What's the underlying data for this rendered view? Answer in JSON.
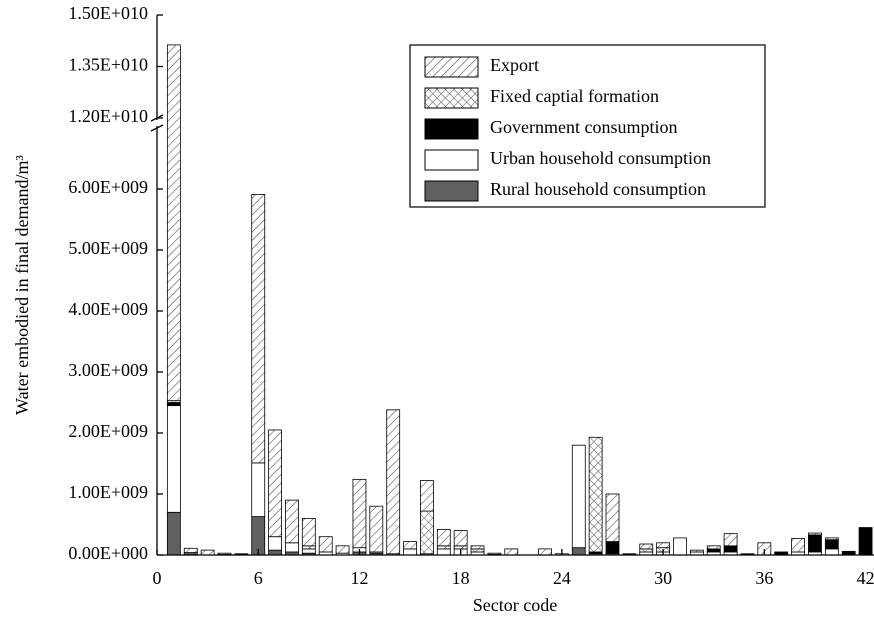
{
  "chart_data": {
    "type": "stacked_bar",
    "x_label": "Sector code",
    "y_label": "Water embodied in final demand/m³",
    "x": [
      1,
      2,
      3,
      4,
      5,
      6,
      7,
      8,
      9,
      10,
      11,
      12,
      13,
      14,
      15,
      16,
      17,
      18,
      19,
      20,
      21,
      22,
      23,
      24,
      25,
      26,
      27,
      28,
      29,
      30,
      31,
      32,
      33,
      34,
      35,
      36,
      37,
      38,
      39,
      40,
      41,
      42
    ],
    "xlim": [
      0,
      42.5
    ],
    "xticks": [
      0,
      6,
      12,
      18,
      24,
      30,
      36,
      42
    ],
    "ylim": [
      0,
      15000000000
    ],
    "y_break": [
      7000000000,
      12000000000
    ],
    "yticks": [
      {
        "value": 0,
        "label": "0.00E+000"
      },
      {
        "value": 1000000000,
        "label": "1.00E+009"
      },
      {
        "value": 2000000000,
        "label": "2.00E+009"
      },
      {
        "value": 3000000000,
        "label": "3.00E+009"
      },
      {
        "value": 4000000000,
        "label": "4.00E+009"
      },
      {
        "value": 5000000000,
        "label": "5.00E+009"
      },
      {
        "value": 6000000000,
        "label": "6.00E+009"
      },
      {
        "value": 12000000000,
        "label": "1.20E+010"
      },
      {
        "value": 13500000000,
        "label": "1.35E+010"
      },
      {
        "value": 15000000000,
        "label": "1.50E+010"
      }
    ],
    "legend": "upper right",
    "series": [
      {
        "name": "Export",
        "color": "#555555",
        "pattern": "hatch",
        "values": [
          11600000000.0,
          70000000.0,
          80000000.0,
          20000000.0,
          10000000.0,
          4400000000.0,
          1750000000.0,
          700000000.0,
          450000000.0,
          250000000.0,
          120000000.0,
          1120000000.0,
          750000000.0,
          2360000000.0,
          120000000.0,
          500000000.0,
          270000000.0,
          250000000.0,
          50000000.0,
          20000000.0,
          100000000.0,
          0,
          100000000.0,
          0,
          0,
          0,
          780000000.0,
          10000000.0,
          80000000.0,
          80000000.0,
          0,
          30000000.0,
          50000000.0,
          200000000.0,
          10000000.0,
          200000000.0,
          0,
          220000000.0,
          30000000.0,
          30000000.0,
          0,
          0
        ]
      },
      {
        "name": "Fixed captial formation",
        "color": "#555555",
        "pattern": "crosshatch",
        "values": [
          30000000.0,
          0,
          0,
          0,
          0,
          0,
          0,
          0,
          50000000.0,
          0,
          0,
          0,
          0,
          0,
          0,
          700000000.0,
          50000000.0,
          50000000.0,
          50000000.0,
          0,
          0,
          0,
          0,
          0,
          0,
          1880000000.0,
          0,
          0,
          50000000.0,
          70000000.0,
          0,
          0,
          0,
          0,
          0,
          0,
          0,
          0,
          0,
          0,
          0,
          0
        ]
      },
      {
        "name": "Government consumption",
        "color": "#000000",
        "pattern": "solid",
        "values": [
          50000000.0,
          0,
          0,
          0,
          0,
          0,
          0,
          0,
          0,
          0,
          0,
          0,
          0,
          0,
          0,
          0,
          0,
          0,
          0,
          0,
          0,
          0,
          0,
          0,
          0,
          30000000.0,
          200000000.0,
          0,
          0,
          0,
          0,
          0,
          50000000.0,
          100000000.0,
          0,
          0,
          50000000.0,
          0,
          280000000.0,
          150000000.0,
          60000000.0,
          450000000.0
        ]
      },
      {
        "name": "Urban household consumption",
        "color": "#ffffff",
        "pattern": "solid",
        "values": [
          1750000000.0,
          20000000.0,
          0,
          10000000.0,
          10000000.0,
          880000000.0,
          220000000.0,
          150000000.0,
          70000000.0,
          50000000.0,
          30000000.0,
          70000000.0,
          20000000.0,
          20000000.0,
          100000000.0,
          20000000.0,
          100000000.0,
          100000000.0,
          50000000.0,
          10000000.0,
          0,
          0,
          0,
          20000000.0,
          1680000000.0,
          20000000.0,
          20000000.0,
          10000000.0,
          50000000.0,
          50000000.0,
          280000000.0,
          50000000.0,
          50000000.0,
          50000000.0,
          10000000.0,
          0,
          0,
          50000000.0,
          50000000.0,
          100000000.0,
          0,
          0
        ]
      },
      {
        "name": "Rural household consumption",
        "color": "#606060",
        "pattern": "solid",
        "values": [
          700000000.0,
          20000000.0,
          0,
          0,
          0,
          630000000.0,
          80000000.0,
          50000000.0,
          30000000.0,
          0,
          0,
          50000000.0,
          30000000.0,
          0,
          0,
          0,
          0,
          0,
          0,
          0,
          0,
          0,
          0,
          0,
          120000000.0,
          0,
          0,
          0,
          0,
          0,
          0,
          0,
          0,
          0,
          0,
          0,
          0,
          0,
          0,
          0,
          0,
          0
        ]
      }
    ]
  }
}
